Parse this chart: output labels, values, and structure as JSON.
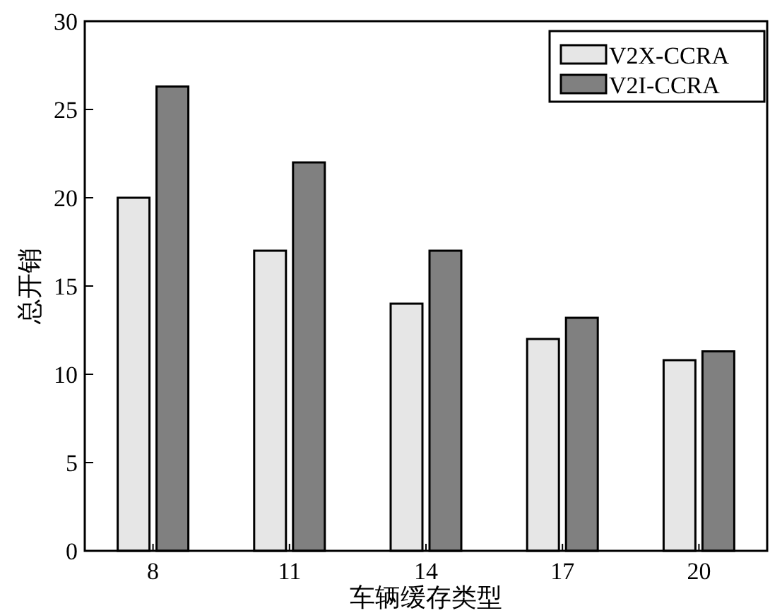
{
  "chart_data": {
    "type": "bar",
    "xlabel": "车辆缓存类型",
    "ylabel": "总开销",
    "categories": [
      "8",
      "11",
      "14",
      "17",
      "20"
    ],
    "series": [
      {
        "name": "V2X-CCRA",
        "color": "#e6e6e6",
        "values": [
          20,
          17,
          14,
          12,
          10.8
        ]
      },
      {
        "name": "V2I-CCRA",
        "color": "#808080",
        "values": [
          26.3,
          22,
          17,
          13.2,
          11.3
        ]
      }
    ],
    "ylim": [
      0,
      30
    ],
    "yticks": [
      0,
      5,
      10,
      15,
      20,
      25,
      30
    ],
    "grid": false,
    "legend": "top right"
  }
}
